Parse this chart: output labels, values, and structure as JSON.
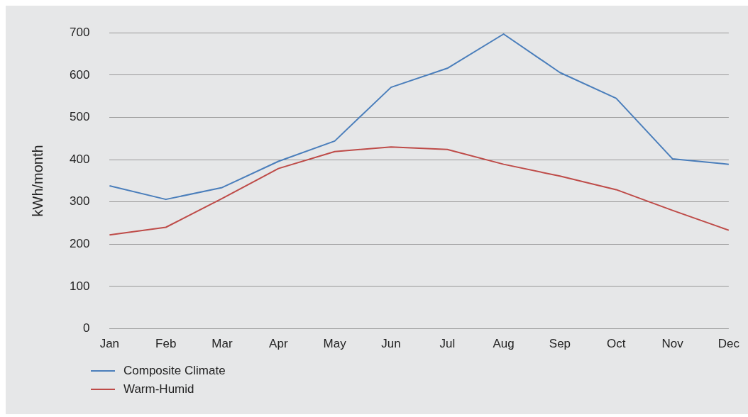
{
  "chart_data": {
    "type": "line",
    "ylabel": "kWh/month",
    "categories": [
      "Jan",
      "Feb",
      "Mar",
      "Apr",
      "May",
      "Jun",
      "Jul",
      "Aug",
      "Sep",
      "Oct",
      "Nov",
      "Dec"
    ],
    "series": [
      {
        "name": "Composite Climate",
        "color": "#4a7ebb",
        "values": [
          338,
          306,
          334,
          396,
          444,
          571,
          616,
          697,
          606,
          545,
          402,
          389
        ]
      },
      {
        "name": "Warm-Humid",
        "color": "#be4b48",
        "values": [
          222,
          240,
          308,
          379,
          419,
          430,
          424,
          389,
          361,
          329,
          280,
          233
        ]
      }
    ],
    "ylim": [
      0,
      700
    ],
    "yticks": [
      0,
      100,
      200,
      300,
      400,
      500,
      600,
      700
    ],
    "grid": "y",
    "legend": "bottom left",
    "marker": "none",
    "line_style": "solid"
  }
}
